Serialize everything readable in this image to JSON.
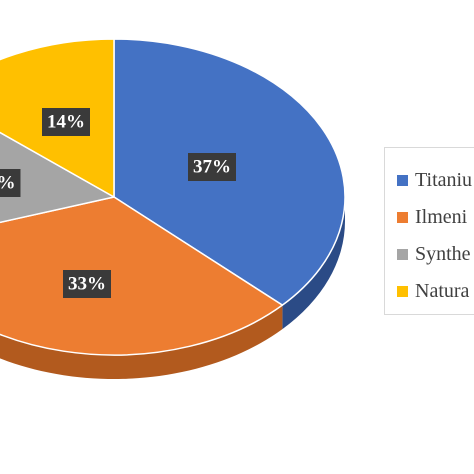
{
  "chart_data": {
    "type": "pie",
    "style": "3d",
    "title": "",
    "legend_position": "right",
    "slices": [
      {
        "name": "Titaniu",
        "value": 37,
        "label": "37%",
        "color": "#4472c4",
        "side_color": "#2b4b86"
      },
      {
        "name": "Ilmeni",
        "value": 33,
        "label": "33%",
        "color": "#ed7d31",
        "side_color": "#b25a1e"
      },
      {
        "name": "Synthe",
        "value": 16,
        "label": "%",
        "color": "#a5a5a5",
        "side_color": "#767676"
      },
      {
        "name": "Natura",
        "value": 14,
        "label": "14%",
        "color": "#ffc000",
        "side_color": "#bf9000"
      }
    ],
    "label_box_color": "#3a3a3a"
  }
}
